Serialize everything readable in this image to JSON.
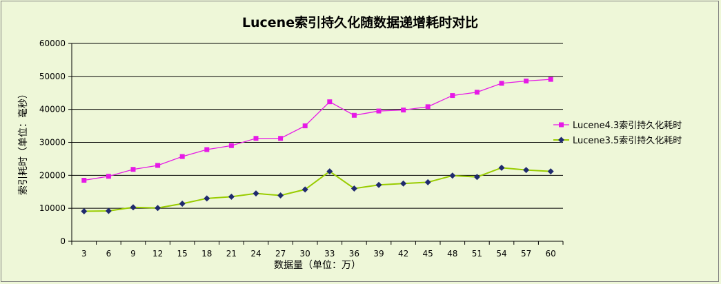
{
  "chart_data": {
    "type": "line",
    "title": "Lucene索引持久化随数据递增耗时对比",
    "xlabel": "数据量（单位：万）",
    "ylabel": "索引耗时（单位：毫秒）",
    "categories": [
      "3",
      "6",
      "9",
      "12",
      "15",
      "18",
      "21",
      "24",
      "27",
      "30",
      "33",
      "36",
      "39",
      "42",
      "45",
      "48",
      "51",
      "54",
      "57",
      "60"
    ],
    "ylim": [
      0,
      60000
    ],
    "yticks": [
      0,
      10000,
      20000,
      30000,
      40000,
      50000,
      60000
    ],
    "ytick_labels": [
      "0",
      "10000",
      "20000",
      "30000",
      "40000",
      "50000",
      "60000"
    ],
    "grid": true,
    "legend_position": "right",
    "series": [
      {
        "name": "Lucene4.3索引持久化耗时",
        "color": "#e619e6",
        "marker": "square",
        "values": [
          18500,
          19700,
          21800,
          23000,
          25700,
          27800,
          29000,
          31200,
          31200,
          35000,
          42300,
          38200,
          39500,
          39800,
          40800,
          44200,
          45200,
          47900,
          48600,
          49100
        ]
      },
      {
        "name": "Lucene3.5索引持久化耗时",
        "color": "#99cc00",
        "marker_color": "#1f2a6e",
        "marker": "diamond",
        "values": [
          9100,
          9200,
          10300,
          10100,
          11400,
          13000,
          13500,
          14500,
          13900,
          15700,
          21200,
          16000,
          17100,
          17500,
          17900,
          19900,
          19500,
          22300,
          21600,
          21200
        ]
      }
    ]
  }
}
